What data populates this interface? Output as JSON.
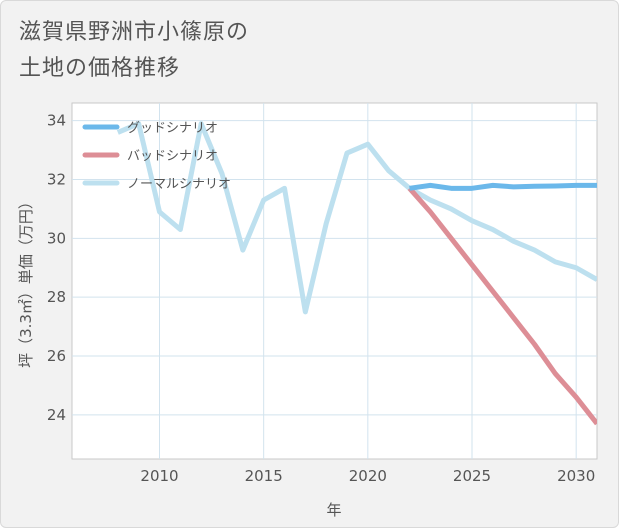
{
  "title_lines": [
    "滋賀県野洲市小篠原の",
    "土地の価格推移"
  ],
  "chart_data": {
    "type": "line",
    "xlabel": "年",
    "ylabel": "坪（3.3㎡）単価（万円）",
    "xlim": [
      2005.8,
      2031
    ],
    "ylim": [
      22.5,
      34.6
    ],
    "xticks": [
      2010,
      2015,
      2020,
      2025,
      2030
    ],
    "yticks": [
      24,
      26,
      28,
      30,
      32,
      34
    ],
    "grid": true,
    "legend_position": "top-left",
    "series": [
      {
        "name": "グッドシナリオ",
        "color": "#6bb8ea",
        "x": [
          2022,
          2023,
          2024,
          2025,
          2026,
          2027,
          2028,
          2029,
          2030,
          2031
        ],
        "values": [
          31.7,
          31.8,
          31.7,
          31.7,
          31.8,
          31.75,
          31.77,
          31.78,
          31.8,
          31.8
        ]
      },
      {
        "name": "バッドシナリオ",
        "color": "#dd8e96",
        "x": [
          2022,
          2023,
          2024,
          2025,
          2026,
          2027,
          2028,
          2029,
          2030,
          2031
        ],
        "values": [
          31.7,
          30.9,
          30.0,
          29.1,
          28.2,
          27.3,
          26.4,
          25.4,
          24.6,
          23.7
        ]
      },
      {
        "name": "ノーマルシナリオ",
        "color": "#bde0ef",
        "x": [
          2008,
          2009,
          2010,
          2011,
          2012,
          2013,
          2014,
          2015,
          2016,
          2017,
          2018,
          2019,
          2020,
          2021,
          2022,
          2023,
          2024,
          2025,
          2026,
          2027,
          2028,
          2029,
          2030,
          2031
        ],
        "values": [
          33.6,
          33.9,
          30.9,
          30.3,
          33.9,
          32.2,
          29.6,
          31.3,
          31.7,
          27.5,
          30.5,
          32.9,
          33.2,
          32.3,
          31.7,
          31.3,
          31.0,
          30.6,
          30.3,
          29.9,
          29.6,
          29.2,
          29.0,
          28.6
        ]
      }
    ]
  }
}
